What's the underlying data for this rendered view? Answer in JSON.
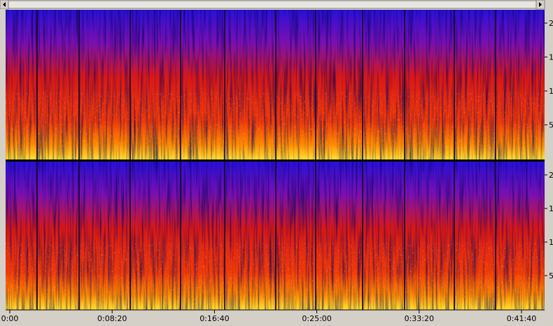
{
  "time_axis": {
    "labels": [
      "0:00",
      "0:08:20",
      "0:16:40",
      "0:25:00",
      "0:33:20",
      "0:41:40"
    ]
  },
  "channels": [
    {
      "frequency_labels": [
        "2",
        "1",
        "1",
        "5"
      ]
    },
    {
      "frequency_labels": [
        "2",
        "1",
        "1",
        "5"
      ]
    }
  ]
}
